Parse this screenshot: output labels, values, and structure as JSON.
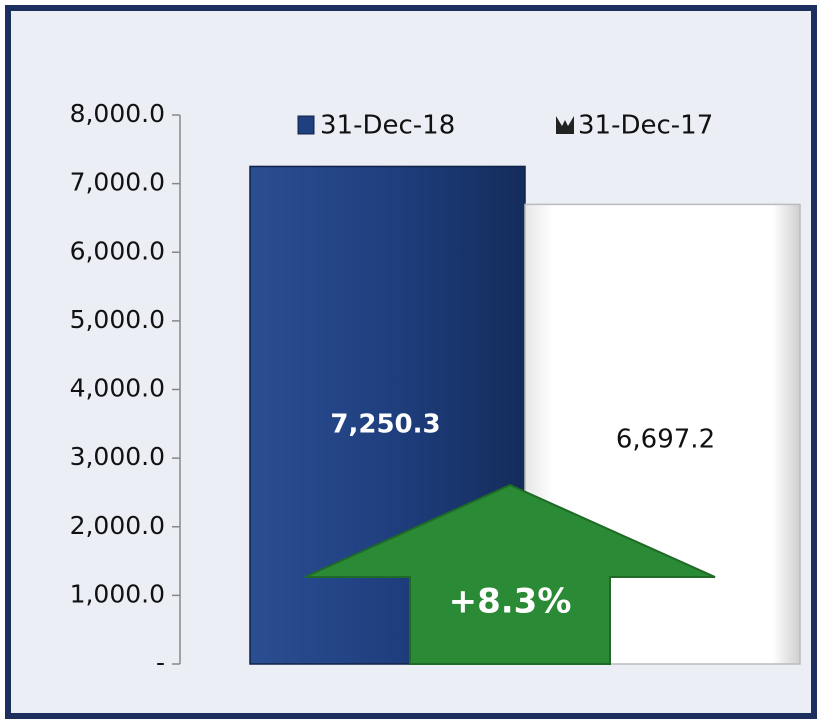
{
  "chart_data": {
    "type": "bar",
    "categories": [
      null
    ],
    "series": [
      {
        "name": "31-Dec-18",
        "color": "#1f3f7f",
        "values": [
          7250.3
        ],
        "value_labels": [
          "7,250.3"
        ]
      },
      {
        "name": "31-Dec-17",
        "color": "#ffffff",
        "values": [
          6697.2
        ],
        "value_labels": [
          "6,697.2"
        ]
      }
    ],
    "ylim": [
      0,
      8000
    ],
    "yticks": [
      {
        "value": 0,
        "label": "-"
      },
      {
        "value": 1000,
        "label": "1,000.0"
      },
      {
        "value": 2000,
        "label": "2,000.0"
      },
      {
        "value": 3000,
        "label": "3,000.0"
      },
      {
        "value": 4000,
        "label": "4,000.0"
      },
      {
        "value": 5000,
        "label": "5,000.0"
      },
      {
        "value": 6000,
        "label": "6,000.0"
      },
      {
        "value": 7000,
        "label": "7,000.0"
      },
      {
        "value": 8000,
        "label": "8,000.0"
      }
    ],
    "annotation": "+8.3%",
    "legend": "top"
  }
}
